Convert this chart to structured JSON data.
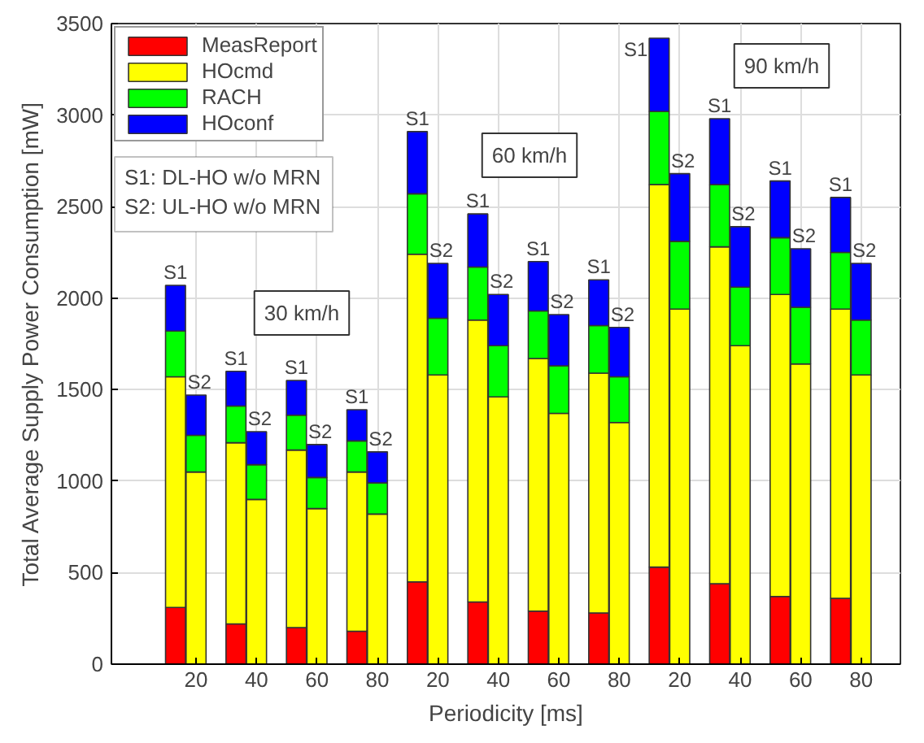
{
  "chart_data": {
    "type": "bar",
    "stacked": true,
    "xlabel": "Periodicity [ms]",
    "ylabel": "Total Average Supply Power Consumption [mW]",
    "categories": [
      null,
      "20",
      null,
      "40",
      null,
      "60",
      null,
      "80",
      null,
      "20",
      null,
      "40",
      null,
      "60",
      null,
      "80",
      null,
      "20",
      null,
      "40",
      null,
      "60",
      null,
      "80"
    ],
    "ylim": [
      0,
      3500
    ],
    "yticks": [
      0,
      500,
      1000,
      1500,
      2000,
      2500,
      3000,
      3500
    ],
    "grid": true,
    "legend": "top left",
    "series": [
      {
        "name": "MeasReport",
        "color": "#ff0000",
        "values": [
          310,
          0,
          220,
          0,
          200,
          0,
          180,
          0,
          450,
          0,
          340,
          0,
          290,
          0,
          280,
          0,
          530,
          0,
          440,
          0,
          370,
          0,
          360,
          0
        ]
      },
      {
        "name": "HOcmd",
        "color": "#ffff00",
        "values": [
          1260,
          1050,
          990,
          900,
          970,
          850,
          870,
          820,
          1790,
          1580,
          1540,
          1460,
          1380,
          1370,
          1310,
          1320,
          2090,
          1940,
          1840,
          1740,
          1650,
          1640,
          1580,
          1580
        ]
      },
      {
        "name": "RACH",
        "color": "#00ff00",
        "values": [
          250,
          200,
          200,
          190,
          190,
          170,
          170,
          170,
          330,
          310,
          290,
          280,
          260,
          260,
          260,
          250,
          400,
          370,
          340,
          320,
          310,
          310,
          310,
          300
        ]
      },
      {
        "name": "HOconf",
        "color": "#0000ff",
        "values": [
          250,
          220,
          190,
          180,
          190,
          180,
          170,
          170,
          340,
          300,
          290,
          280,
          270,
          280,
          250,
          270,
          400,
          370,
          360,
          330,
          310,
          320,
          300,
          310
        ]
      }
    ],
    "annotations": [
      "S1: DL-HO w/o MRN",
      "S2: UL-HO w/o MRN",
      "30 km/h",
      "60 km/h",
      "90 km/h",
      "S1",
      "S2",
      "S1",
      "S2",
      "S1",
      "S2",
      "S1",
      "S2",
      "S1",
      "S2",
      "S1",
      "S2",
      "S1",
      "S2",
      "S1",
      "S2",
      "S1",
      "S2",
      "S1",
      "S2",
      "S1",
      "S2",
      "S1",
      "S2"
    ]
  }
}
